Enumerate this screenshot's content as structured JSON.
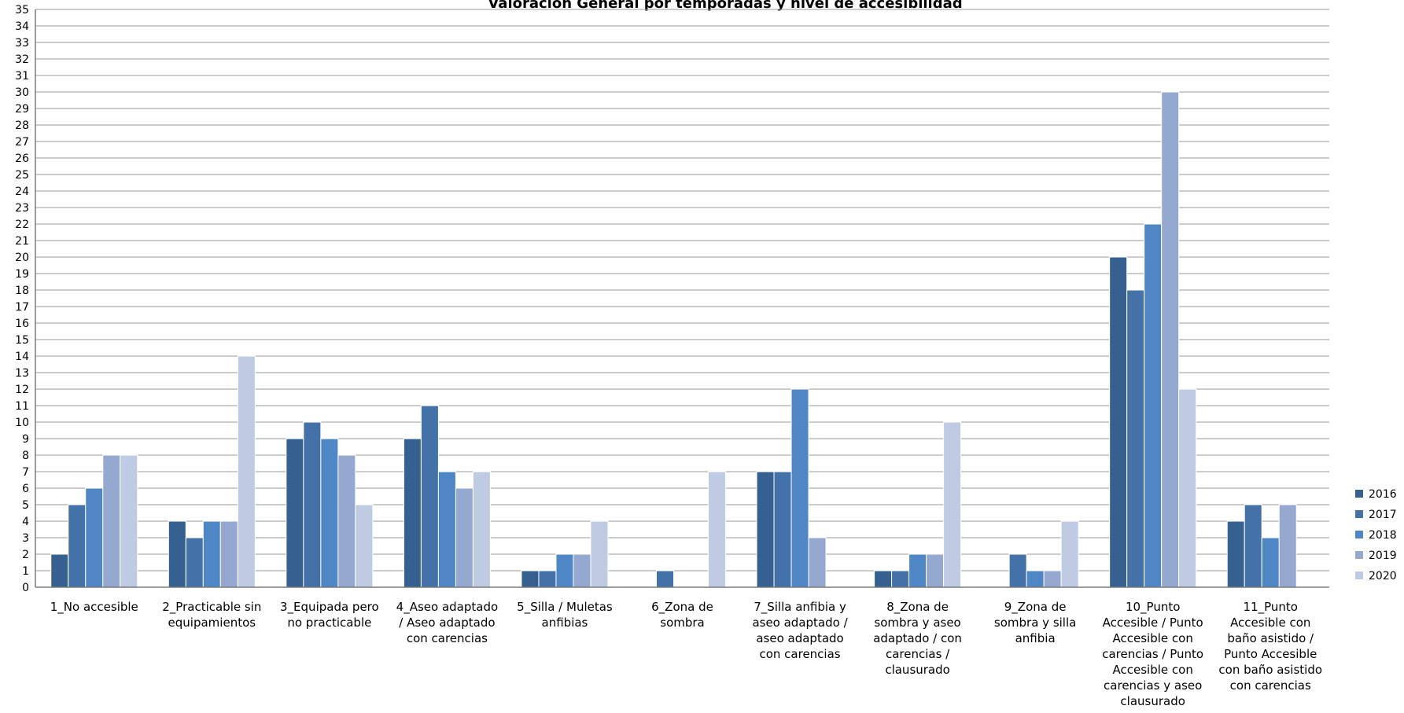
{
  "chart_data": {
    "type": "bar",
    "title": "Valoración General por temporadas y nivel de accesibilidad",
    "xlabel": "",
    "ylabel": "",
    "ylim": [
      0,
      35
    ],
    "ytick_step": 1,
    "grid": true,
    "legend_position": "right",
    "categories": [
      "1_No accesible",
      "2_Practicable sin equipamientos",
      "3_Equipada pero no practicable",
      "4_Aseo adaptado / Aseo adaptado con carencias",
      "5_Silla / Muletas anfibias",
      "6_Zona de sombra",
      "7_Silla anfibia y aseo adaptado / aseo adaptado con carencias",
      "8_Zona de sombra y aseo adaptado / con carencias / clausurado",
      "9_Zona de sombra y silla anfibia",
      "10_Punto Accesible / Punto Accesible con carencias / Punto Accesible con carencias y aseo clausurado",
      "11_Punto Accesible con baño asistido / Punto Accesible con baño asistido con carencias"
    ],
    "category_label_lines": [
      [
        "1_No accesible"
      ],
      [
        "2_Practicable sin",
        "equipamientos"
      ],
      [
        "3_Equipada pero",
        "no practicable"
      ],
      [
        "4_Aseo adaptado",
        "/ Aseo adaptado",
        "con carencias"
      ],
      [
        "5_Silla / Muletas",
        "anfibias"
      ],
      [
        "6_Zona de",
        "sombra"
      ],
      [
        "7_Silla anfibia y",
        "aseo adaptado /",
        "aseo adaptado",
        "con carencias"
      ],
      [
        "8_Zona de",
        "sombra y aseo",
        "adaptado / con",
        "carencias /",
        "clausurado"
      ],
      [
        "9_Zona de",
        "sombra y silla",
        "anfibia"
      ],
      [
        "10_Punto",
        "Accesible / Punto",
        "Accesible con",
        "carencias / Punto",
        "Accesible con",
        "carencias y aseo",
        "clausurado"
      ],
      [
        "11_Punto",
        "Accesible con",
        "baño asistido /",
        "Punto Accesible",
        "con baño asistido",
        "con carencias"
      ]
    ],
    "series": [
      {
        "name": "2016",
        "color": "#35608f",
        "values": [
          2,
          4,
          9,
          9,
          1,
          0,
          7,
          1,
          0,
          20,
          4
        ]
      },
      {
        "name": "2017",
        "color": "#4471a8",
        "values": [
          5,
          3,
          10,
          11,
          1,
          1,
          7,
          1,
          2,
          18,
          5
        ]
      },
      {
        "name": "2018",
        "color": "#4f86c6",
        "values": [
          6,
          4,
          9,
          7,
          2,
          0,
          12,
          2,
          1,
          22,
          3
        ]
      },
      {
        "name": "2019",
        "color": "#95a9d0",
        "values": [
          8,
          4,
          8,
          6,
          2,
          0,
          3,
          2,
          1,
          30,
          5
        ]
      },
      {
        "name": "2020",
        "color": "#bfcbe3",
        "values": [
          8,
          14,
          5,
          7,
          4,
          7,
          0,
          10,
          4,
          12,
          0
        ]
      }
    ]
  }
}
